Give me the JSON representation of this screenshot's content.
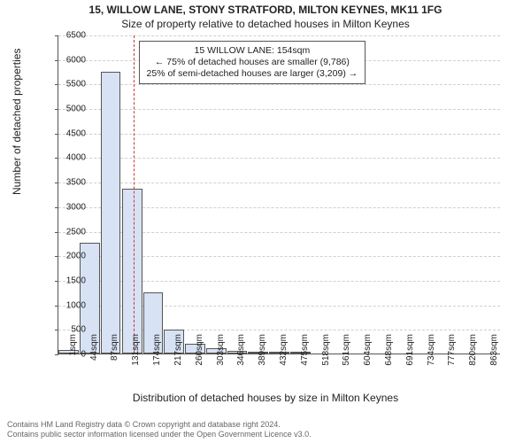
{
  "chart": {
    "type": "histogram",
    "title": "15, WILLOW LANE, STONY STRATFORD, MILTON KEYNES, MK11 1FG",
    "subtitle": "Size of property relative to detached houses in Milton Keynes",
    "ylabel": "Number of detached properties",
    "xlabel": "Distribution of detached houses by size in Milton Keynes",
    "background_color": "#ffffff",
    "grid_color": "#cfcfcf",
    "axis_color": "#555555",
    "bar_fill": "#d7e2f4",
    "bar_border": "#555555",
    "ref_color": "#d33333",
    "title_fontsize": 12,
    "label_fontsize": 12,
    "tick_fontsize": 10,
    "ylim": [
      0,
      6500
    ],
    "ytick_step": 500,
    "xticks": [
      "1sqm",
      "44sqm",
      "87sqm",
      "131sqm",
      "174sqm",
      "217sqm",
      "260sqm",
      "303sqm",
      "346sqm",
      "389sqm",
      "432sqm",
      "475sqm",
      "518sqm",
      "561sqm",
      "604sqm",
      "648sqm",
      "691sqm",
      "734sqm",
      "777sqm",
      "820sqm",
      "863sqm"
    ],
    "bars": [
      {
        "x": 1,
        "v": 70
      },
      {
        "x": 44,
        "v": 2250
      },
      {
        "x": 87,
        "v": 5750
      },
      {
        "x": 131,
        "v": 3350
      },
      {
        "x": 174,
        "v": 1250
      },
      {
        "x": 217,
        "v": 480
      },
      {
        "x": 260,
        "v": 200
      },
      {
        "x": 303,
        "v": 100
      },
      {
        "x": 346,
        "v": 60
      },
      {
        "x": 389,
        "v": 35
      },
      {
        "x": 432,
        "v": 20
      },
      {
        "x": 475,
        "v": 20
      }
    ],
    "bin_width": 43,
    "x_range": [
      1,
      906
    ],
    "reference": {
      "value": 154,
      "box_lines": [
        "15 WILLOW LANE: 154sqm",
        "← 75% of detached houses are smaller (9,786)",
        "25% of semi-detached houses are larger (3,209) →"
      ]
    }
  },
  "footer": {
    "line1": "Contains HM Land Registry data © Crown copyright and database right 2024.",
    "line2": "Contains public sector information licensed under the Open Government Licence v3.0."
  }
}
